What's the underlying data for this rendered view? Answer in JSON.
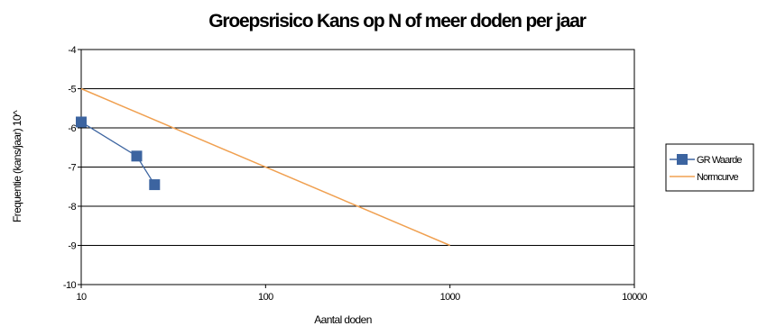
{
  "chart_data": {
    "type": "line",
    "title": "Groepsrisico Kans op N of meer doden per jaar",
    "xlabel": "Aantal doden",
    "ylabel": "Frequentie (kans/jaar) 10^",
    "x_scale": "log",
    "xlim": [
      10,
      10000
    ],
    "ylim": [
      -10,
      -4
    ],
    "x_ticks": [
      "10",
      "100",
      "1000",
      "10000"
    ],
    "y_ticks": [
      "-4",
      "-5",
      "-6",
      "-7",
      "-8",
      "-9",
      "-10"
    ],
    "grid": "horizontal",
    "legend": "right",
    "series": [
      {
        "name": "GR Waarde",
        "color": "#3c64a0",
        "marker": "square",
        "points": [
          [
            10,
            -5.85
          ],
          [
            20,
            -6.72
          ],
          [
            25,
            -7.45
          ]
        ]
      },
      {
        "name": "Normcurve",
        "color": "#f0a050",
        "marker": "none",
        "points": [
          [
            10,
            -5
          ],
          [
            1000,
            -9
          ]
        ]
      }
    ]
  }
}
